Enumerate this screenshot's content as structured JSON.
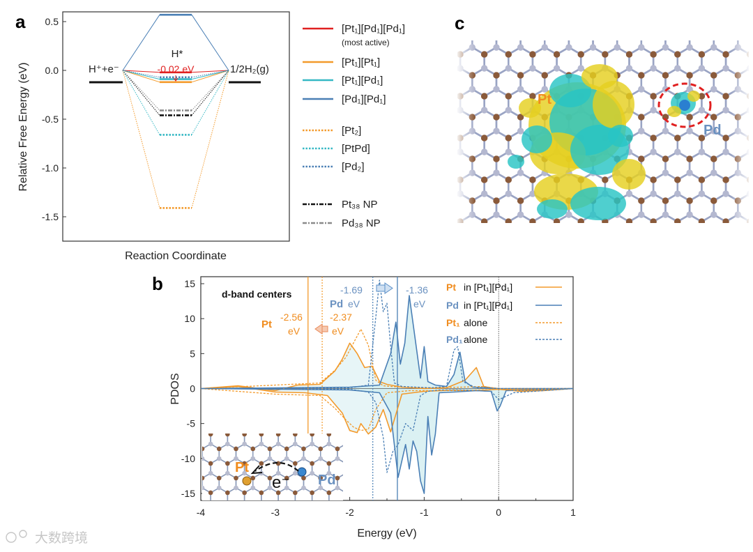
{
  "panel_labels": {
    "a": "a",
    "b": "b",
    "c": "c"
  },
  "colors": {
    "red": "#e02020",
    "orange": "#f39a2b",
    "teal": "#35b8c4",
    "blue": "#4a7fb5",
    "black": "#111111",
    "gray": "#8a8a8a",
    "pt_label": "#f08c1e",
    "pd_label": "#6a91c0",
    "fill_teal": "#cfecef",
    "c_gold": "#e5d020",
    "c_cyan": "#28c4c4"
  },
  "chart_data": [
    {
      "id": "a",
      "type": "line",
      "ylabel": "Relative Free Energy (eV)",
      "xlabel": "Reaction Coordinate",
      "ylim": [
        -1.75,
        0.6
      ],
      "yticks": [
        "0.5",
        "0.0",
        "-0.5",
        "-1.0",
        "-1.5"
      ],
      "ytick_values": [
        0.5,
        0.0,
        -0.5,
        -1.0,
        -1.5
      ],
      "states": {
        "initial": "H⁺+e⁻",
        "intermediate": "H*",
        "final": "1/2H₂(g)"
      },
      "annotation": "-0.02 eV",
      "series": [
        {
          "name": "[Pt₁][Pd₁][Pd₁]",
          "sublabel": "(most active)",
          "color_key": "red",
          "dash": "solid",
          "dG": -0.02
        },
        {
          "name": "[Pt₁][Pt₁]",
          "sublabel": "",
          "color_key": "orange",
          "dash": "solid",
          "dG": -0.12
        },
        {
          "name": "[Pt₁][Pd₁]",
          "sublabel": "",
          "color_key": "teal",
          "dash": "solid",
          "dG": -0.09
        },
        {
          "name": "[Pd₁][Pd₁]",
          "sublabel": "",
          "color_key": "blue",
          "dash": "solid",
          "dG": 0.57
        },
        {
          "name": "[Pt₂]",
          "sublabel": "",
          "color_key": "orange",
          "dash": "dot",
          "dG": -1.41
        },
        {
          "name": "[PtPd]",
          "sublabel": "",
          "color_key": "teal",
          "dash": "dot",
          "dG": -0.66
        },
        {
          "name": "[Pd₂]",
          "sublabel": "",
          "color_key": "blue",
          "dash": "dot",
          "dG": -0.07
        },
        {
          "name": "Pt₃₈ NP",
          "sublabel": "",
          "color_key": "black",
          "dash": "dashdot",
          "dG": -0.46
        },
        {
          "name": "Pd₃₈ NP",
          "sublabel": "",
          "color_key": "gray",
          "dash": "dashdot",
          "dG": -0.41
        }
      ]
    },
    {
      "id": "b",
      "type": "line",
      "ylabel": "PDOS",
      "xlabel": "Energy (eV)",
      "xlim": [
        -4,
        1
      ],
      "ylim": [
        -16,
        16
      ],
      "xticks": [
        "-4",
        "-3",
        "-2",
        "-1",
        "0",
        "1"
      ],
      "xtick_values": [
        -4,
        -3,
        -2,
        -1,
        0,
        1
      ],
      "yticks": [
        "15",
        "10",
        "5",
        "0",
        "-5",
        "-10",
        "-15"
      ],
      "ytick_values": [
        15,
        10,
        5,
        0,
        -5,
        -10,
        -15
      ],
      "dband_title": "d-band centers",
      "fermi_level": 0,
      "dband_centers": {
        "pt_alloy": -2.56,
        "pt_alone": -2.37,
        "pd_alloy": -1.36,
        "pd_alone": -1.69
      },
      "annotations": {
        "pt_label": "Pt",
        "pt_val1": "-2.56",
        "pt_unit1": "eV",
        "pt_val2": "-2.37",
        "pt_unit2": "eV",
        "pd_label": "Pd",
        "pd_unit1": "eV",
        "pd_val1": "-1.69",
        "pd_val2": "-1.36",
        "pd_unit2": "eV"
      },
      "legend": [
        {
          "elem": "Pt",
          "rest": "in [Pt₁][Pd₁]",
          "color_key": "orange",
          "dash": "solid"
        },
        {
          "elem": "Pd",
          "rest": "in [Pt₁][Pd₁]",
          "color_key": "blue",
          "dash": "solid"
        },
        {
          "elem": "Pt₁",
          "rest": "alone",
          "color_key": "orange",
          "dash": "dot"
        },
        {
          "elem": "Pd₁",
          "rest": "alone",
          "color_key": "blue",
          "dash": "dot"
        }
      ],
      "inset": {
        "pt": "Pt",
        "pd": "Pd",
        "electron": "e⁻"
      },
      "series": [
        {
          "name": "Pt in [Pt1][Pd1] up",
          "color_key": "orange",
          "dash": "solid",
          "x": [
            -4.0,
            -3.5,
            -3.0,
            -2.7,
            -2.4,
            -2.2,
            -2.1,
            -2.0,
            -1.9,
            -1.8,
            -1.7,
            -1.6,
            -1.5,
            -1.3,
            -1.0,
            -0.7,
            -0.45,
            -0.3,
            -0.2,
            0.0,
            0.3,
            0.6,
            1.0
          ],
          "y": [
            0,
            0.4,
            -0.3,
            0.5,
            0.6,
            2.5,
            4.2,
            6.5,
            5.0,
            3.0,
            3.2,
            1.0,
            0.6,
            0.2,
            0,
            0.1,
            1.2,
            3.0,
            0.3,
            -0.1,
            -0.4,
            -0.3,
            0
          ]
        },
        {
          "name": "Pt in [Pt1][Pd1] down",
          "color_key": "orange",
          "dash": "solid",
          "x": [
            -4.0,
            -3.5,
            -3.0,
            -2.6,
            -2.3,
            -2.1,
            -2.0,
            -1.9,
            -1.85,
            -1.75,
            -1.65,
            -1.55,
            -1.45,
            -1.3,
            -1.0,
            -0.6,
            -0.3,
            0.0,
            0.5,
            1.0
          ],
          "y": [
            0,
            0.3,
            -0.5,
            -0.6,
            -1.0,
            -3.5,
            -6.0,
            -6.3,
            -5.0,
            -6.5,
            -5.5,
            -3.0,
            -6.2,
            -0.8,
            -0.4,
            -0.2,
            -0.3,
            -0.1,
            -0.1,
            0
          ]
        },
        {
          "name": "Pd in [Pt1][Pd1] up",
          "color_key": "blue",
          "dash": "solid",
          "x": [
            -4.0,
            -2.0,
            -1.6,
            -1.45,
            -1.38,
            -1.32,
            -1.26,
            -1.2,
            -1.12,
            -1.05,
            -1.0,
            -0.95,
            -0.85,
            -0.7,
            -0.6,
            -0.52,
            -0.45,
            -0.35,
            -0.1,
            0.0,
            0.5,
            1.0
          ],
          "y": [
            0,
            0.2,
            0.5,
            5.0,
            9.5,
            3.5,
            6.5,
            13.3,
            7.0,
            1.5,
            6.0,
            1.0,
            0.5,
            0.3,
            2.0,
            5.2,
            1.0,
            0.2,
            0.1,
            0,
            0,
            0
          ]
        },
        {
          "name": "Pd in [Pt1][Pd1] down",
          "color_key": "blue",
          "dash": "solid",
          "x": [
            -4.0,
            -2.0,
            -1.6,
            -1.45,
            -1.35,
            -1.25,
            -1.2,
            -1.15,
            -1.1,
            -1.05,
            -1.0,
            -0.95,
            -0.9,
            -0.85,
            -0.8,
            -0.6,
            -0.3,
            -0.1,
            -0.02,
            0.02,
            0.1,
            0.5,
            1.0
          ],
          "y": [
            0,
            -0.2,
            -0.6,
            -3.5,
            -12.7,
            -8.0,
            -11.5,
            -7.5,
            -9.0,
            -13.2,
            -15.0,
            -4.0,
            -9.5,
            -6.5,
            -0.6,
            -0.5,
            -0.3,
            -0.4,
            -3.2,
            -2.5,
            -0.3,
            -0.2,
            0
          ]
        },
        {
          "name": "Pt1 alone up",
          "color_key": "orange",
          "dash": "dot",
          "x": [
            -4.0,
            -3.0,
            -2.4,
            -2.2,
            -2.05,
            -1.95,
            -1.85,
            -1.75,
            -1.65,
            -1.55,
            -1.45,
            -1.3,
            -1.0,
            -0.5,
            -0.2,
            0.0,
            1.0
          ],
          "y": [
            0,
            0.5,
            0.8,
            2.6,
            4.5,
            6.5,
            8.5,
            6.2,
            1.2,
            0.4,
            0.3,
            0.2,
            0.1,
            0.2,
            0.3,
            0,
            0
          ]
        },
        {
          "name": "Pt1 alone down",
          "color_key": "orange",
          "dash": "dot",
          "x": [
            -4.0,
            -3.0,
            -2.4,
            -2.2,
            -2.05,
            -1.95,
            -1.85,
            -1.75,
            -1.65,
            -1.5,
            -1.2,
            -0.5,
            0.0,
            0.3,
            1.0
          ],
          "y": [
            0,
            -0.8,
            -1.0,
            -2.8,
            -4.5,
            -5.5,
            -6.0,
            -5.8,
            -3.0,
            -0.6,
            -0.3,
            -0.3,
            -0.1,
            -0.3,
            0
          ]
        },
        {
          "name": "Pd1 alone up",
          "color_key": "blue",
          "dash": "dot",
          "x": [
            -4.0,
            -2.0,
            -1.75,
            -1.65,
            -1.6,
            -1.55,
            -1.5,
            -1.45,
            -1.4,
            -1.3,
            -1.1,
            -0.9,
            -0.7,
            -0.6,
            -0.55,
            -0.48,
            -0.3,
            0.0,
            1.0
          ],
          "y": [
            0,
            0.1,
            0.5,
            10.2,
            15.5,
            11.0,
            12.2,
            6.0,
            0.8,
            0.3,
            0.2,
            0.1,
            0.3,
            5.5,
            6.0,
            1.0,
            0.1,
            0,
            0
          ]
        },
        {
          "name": "Pd1 alone down",
          "color_key": "blue",
          "dash": "dot",
          "x": [
            -4.0,
            -2.0,
            -1.75,
            -1.65,
            -1.55,
            -1.5,
            -1.42,
            -1.35,
            -1.25,
            -1.15,
            -1.05,
            -0.95,
            -0.8,
            -0.5,
            -0.1,
            0.0,
            0.2,
            1.0
          ],
          "y": [
            0,
            -0.1,
            -0.5,
            -2.0,
            -7.0,
            -12.0,
            -9.0,
            -8.0,
            -5.0,
            -6.0,
            -1.0,
            -0.4,
            -0.2,
            -0.2,
            -0.4,
            -1.6,
            -0.6,
            0
          ]
        }
      ]
    }
  ],
  "panel_c": {
    "pt_label": "Pt",
    "pd_label": "Pd"
  },
  "watermark": "大数跨境"
}
